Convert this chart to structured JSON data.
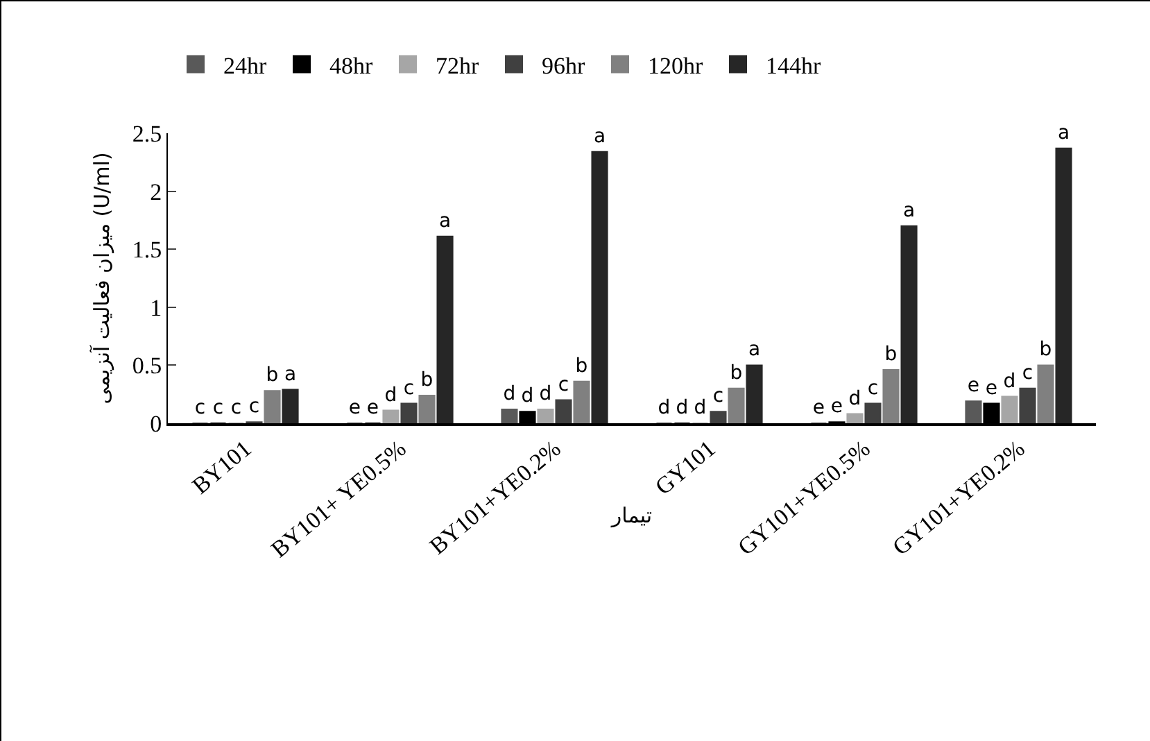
{
  "chart_data": {
    "type": "bar",
    "xlabel": "تیمار",
    "ylabel": "میزان فعالیت آنزیمی (U/ml)",
    "categories": [
      "BY101",
      "BY101+ YE0.5%",
      "BY101+YE0.2%",
      "GY101",
      "GY101+YE0.5%",
      "GY101+YE0.2%"
    ],
    "series": [
      {
        "name": "24hr",
        "color": "#595959",
        "values": [
          0,
          0,
          0.12,
          0,
          0,
          0.19
        ],
        "value_labels": [
          "c",
          "e",
          "d",
          "d",
          "e",
          "e"
        ]
      },
      {
        "name": "48hr",
        "color": "#000000",
        "values": [
          0,
          0,
          0.1,
          0,
          0.01,
          0.17
        ],
        "value_labels": [
          "c",
          "e",
          "d",
          "d",
          "e",
          "e"
        ]
      },
      {
        "name": "72hr",
        "color": "#a6a6a6",
        "values": [
          0,
          0.11,
          0.12,
          0,
          0.08,
          0.23
        ],
        "value_labels": [
          "c",
          "d",
          "d",
          "d",
          "d",
          "d"
        ]
      },
      {
        "name": "96hr",
        "color": "#404040",
        "values": [
          0.01,
          0.17,
          0.2,
          0.1,
          0.17,
          0.3
        ],
        "value_labels": [
          "c",
          "c",
          "c",
          "c",
          "c",
          "c"
        ]
      },
      {
        "name": "120hr",
        "color": "#808080",
        "values": [
          0.28,
          0.24,
          0.36,
          0.3,
          0.46,
          0.5
        ],
        "value_labels": [
          "b",
          "b",
          "b",
          "b",
          "b",
          "b"
        ]
      },
      {
        "name": "144hr",
        "color": "#262626",
        "values": [
          0.29,
          1.61,
          2.34,
          0.5,
          1.7,
          2.37
        ],
        "value_labels": [
          "a",
          "a",
          "a",
          "a",
          "a",
          "a"
        ]
      }
    ],
    "ylim": [
      0,
      2.5
    ],
    "yticks": [
      0,
      0.5,
      1,
      1.5,
      2,
      2.5
    ],
    "grid": false,
    "legend": "top left"
  }
}
